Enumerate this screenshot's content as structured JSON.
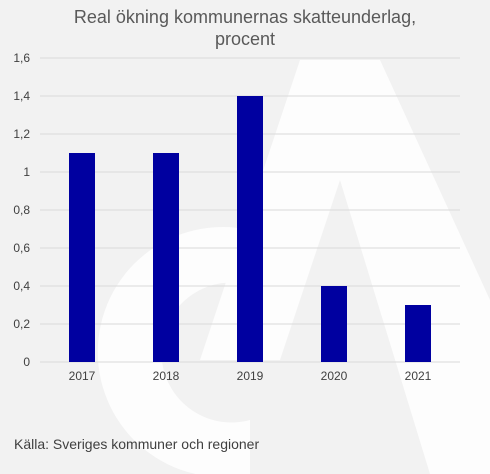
{
  "chart_data": {
    "type": "bar",
    "title": [
      "Real ökning kommunernas skatteunderlag,",
      "procent"
    ],
    "categories": [
      "2017",
      "2018",
      "2019",
      "2020",
      "2021"
    ],
    "values": [
      1.1,
      1.1,
      1.4,
      0.4,
      0.3
    ],
    "ylim": [
      0,
      1.6
    ],
    "yticks": [
      0,
      0.2,
      0.4,
      0.6,
      0.8,
      1,
      1.2,
      1.4,
      1.6
    ],
    "ytick_labels": [
      "0",
      "0,2",
      "0,4",
      "0,6",
      "0,8",
      "1",
      "1,2",
      "1,4",
      "1,6"
    ],
    "xlabel": "",
    "ylabel": "",
    "grid": true,
    "legend": "none",
    "bar_color": "#0000a0",
    "grid_color": "#d9d9d9"
  },
  "source_text": "Källa: Sveriges kommuner och regioner",
  "colors": {
    "background": "#f2f2f2",
    "watermark": "#ffffff"
  }
}
